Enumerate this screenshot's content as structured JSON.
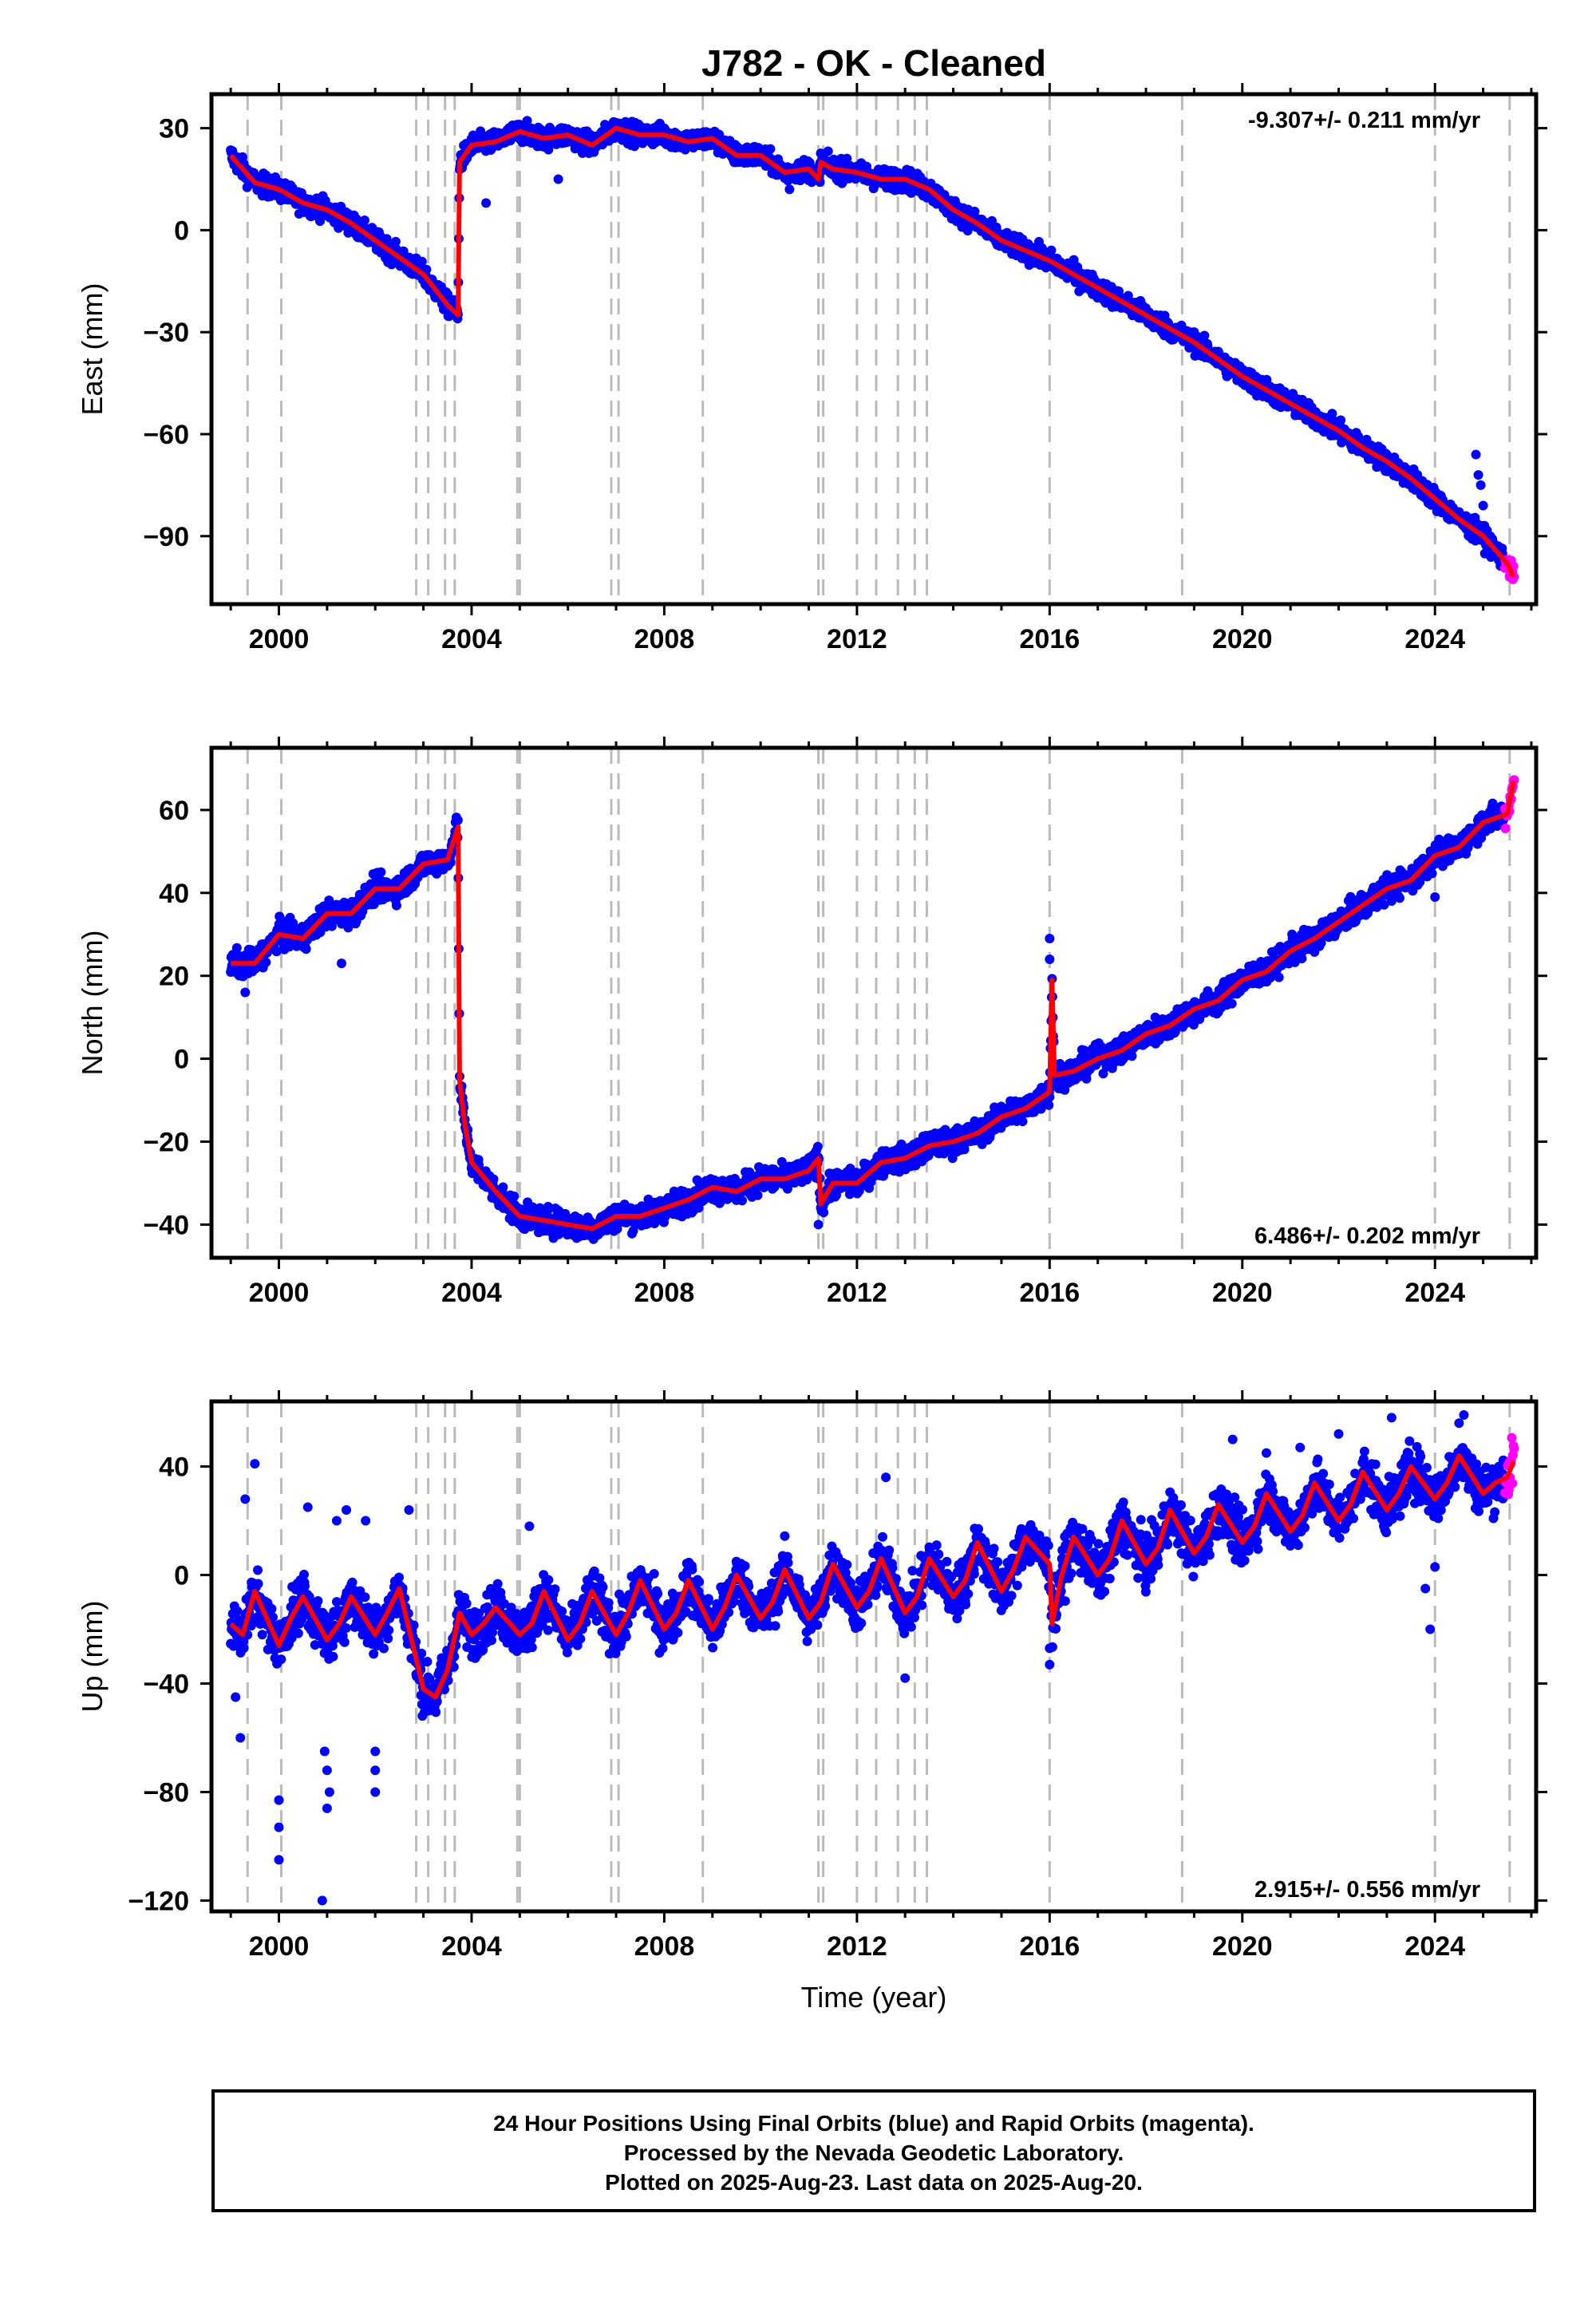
{
  "title": "J782  - OK - Cleaned",
  "x_label": "Time (year)",
  "caption": [
    "24 Hour Positions Using Final Orbits (blue) and Rapid Orbits (magenta).",
    "Processed by the Nevada Geodetic Laboratory.",
    "Plotted on 2025-Aug-23. Last data on 2025-Aug-20."
  ],
  "colors": {
    "final_orbits": "#0000ff",
    "rapid_orbits": "#ff00ff",
    "model": "#ff0000",
    "event_lines": "#bbbbbb"
  },
  "chart_data": [
    {
      "type": "scatter",
      "ylabel": "East (mm)",
      "rate_label": "-9.307+/- 0.211 mm/yr",
      "rate_position": "top-right",
      "xlim": [
        1998.6,
        2026.1
      ],
      "ylim": [
        -110,
        40
      ],
      "xticks": [
        2000,
        2004,
        2008,
        2012,
        2016,
        2020,
        2024
      ],
      "yticks": [
        30,
        0,
        -30,
        -60,
        -90
      ],
      "x": [
        1999.0,
        1999.5,
        2000.0,
        2000.5,
        2001.0,
        2001.5,
        2002.0,
        2002.5,
        2003.0,
        2003.5,
        2003.72,
        2003.75,
        2004.0,
        2004.5,
        2005.0,
        2005.5,
        2006.0,
        2006.5,
        2007.0,
        2007.5,
        2008.0,
        2008.5,
        2009.0,
        2009.5,
        2010.0,
        2010.5,
        2011.0,
        2011.2,
        2011.25,
        2011.5,
        2012.0,
        2012.5,
        2013.0,
        2013.5,
        2014.0,
        2014.5,
        2015.0,
        2015.5,
        2016.0,
        2016.5,
        2017.0,
        2017.5,
        2018.0,
        2018.5,
        2019.0,
        2019.5,
        2020.0,
        2020.5,
        2021.0,
        2021.5,
        2022.0,
        2022.5,
        2023.0,
        2023.5,
        2024.0,
        2024.5,
        2025.0,
        2025.5,
        2025.63
      ],
      "model": [
        22,
        14,
        12,
        8,
        6,
        2,
        -3,
        -8,
        -13,
        -22,
        -25,
        20,
        25,
        26,
        29,
        27,
        28,
        25,
        30,
        28,
        28,
        26,
        27,
        22,
        22,
        17,
        18,
        15,
        20,
        18,
        17,
        15,
        15,
        12,
        6,
        2,
        -3,
        -6,
        -9,
        -13,
        -17,
        -21,
        -25,
        -29,
        -33,
        -38,
        -43,
        -47,
        -51,
        -55,
        -59,
        -64,
        -68,
        -73,
        -79,
        -85,
        -90,
        -98,
        -102
      ],
      "series": [
        {
          "name": "Final Orbits",
          "color": "#0000ff",
          "spread": 3
        },
        {
          "name": "Rapid Orbits",
          "color": "#ff00ff",
          "x_from": 2025.45
        }
      ],
      "outliers": [
        [
          2024.85,
          -66
        ],
        [
          2024.9,
          -72
        ],
        [
          2024.95,
          -75
        ],
        [
          2025.0,
          -81
        ],
        [
          2010.6,
          12
        ],
        [
          2004.3,
          8
        ],
        [
          2005.8,
          15
        ]
      ]
    },
    {
      "type": "scatter",
      "ylabel": "North (mm)",
      "rate_label": "6.486+/- 0.202 mm/yr",
      "rate_position": "bottom-right",
      "xlim": [
        1998.6,
        2026.1
      ],
      "ylim": [
        -48,
        75
      ],
      "xticks": [
        2000,
        2004,
        2008,
        2012,
        2016,
        2020,
        2024
      ],
      "yticks": [
        60,
        40,
        20,
        0,
        -20,
        -40
      ],
      "x": [
        1999.0,
        1999.5,
        2000.0,
        2000.5,
        2001.0,
        2001.5,
        2002.0,
        2002.5,
        2003.0,
        2003.5,
        2003.72,
        2003.75,
        2003.85,
        2004.0,
        2004.5,
        2005.0,
        2005.5,
        2006.0,
        2006.5,
        2007.0,
        2007.5,
        2008.0,
        2008.5,
        2009.0,
        2009.5,
        2010.0,
        2010.5,
        2011.0,
        2011.2,
        2011.25,
        2011.5,
        2012.0,
        2012.5,
        2013.0,
        2013.5,
        2014.0,
        2014.5,
        2015.0,
        2015.5,
        2016.0,
        2016.05,
        2016.1,
        2016.5,
        2017.0,
        2017.5,
        2018.0,
        2018.5,
        2019.0,
        2019.5,
        2020.0,
        2020.5,
        2021.0,
        2021.5,
        2022.0,
        2022.5,
        2023.0,
        2023.5,
        2024.0,
        2024.5,
        2025.0,
        2025.5,
        2025.63
      ],
      "model": [
        23,
        23,
        30,
        29,
        35,
        35,
        41,
        41,
        47,
        48,
        56,
        -5,
        -15,
        -25,
        -32,
        -38,
        -39,
        -40,
        -41,
        -38,
        -38,
        -36,
        -34,
        -31,
        -32,
        -29,
        -29,
        -27,
        -24,
        -35,
        -30,
        -30,
        -25,
        -24,
        -21,
        -20,
        -18,
        -14,
        -12,
        -8,
        19,
        -4,
        -3,
        0,
        2,
        6,
        8,
        12,
        14,
        19,
        21,
        26,
        29,
        33,
        37,
        41,
        43,
        49,
        51,
        57,
        59,
        67
      ],
      "series": [
        {
          "name": "Final Orbits",
          "color": "#0000ff",
          "spread": 3
        },
        {
          "name": "Rapid Orbits",
          "color": "#ff00ff",
          "x_from": 2025.45
        }
      ],
      "outliers": [
        [
          2016.0,
          29
        ],
        [
          2016.0,
          24
        ],
        [
          2001.3,
          23
        ],
        [
          2011.2,
          -40
        ],
        [
          2024.0,
          39
        ],
        [
          1999.3,
          16
        ]
      ]
    },
    {
      "type": "scatter",
      "ylabel": "Up (mm)",
      "rate_label": "2.915+/- 0.556 mm/yr",
      "rate_position": "bottom-right",
      "xlim": [
        1998.6,
        2026.1
      ],
      "ylim": [
        -124,
        64
      ],
      "xticks": [
        2000,
        2004,
        2008,
        2012,
        2016,
        2020,
        2024
      ],
      "yticks": [
        40,
        0,
        -40,
        -80,
        -120
      ],
      "x": [
        1999.0,
        1999.25,
        1999.5,
        2000.0,
        2000.25,
        2000.5,
        2001.0,
        2001.25,
        2001.5,
        2002.0,
        2002.25,
        2002.5,
        2003.0,
        2003.25,
        2003.5,
        2003.75,
        2004.0,
        2004.25,
        2004.5,
        2005.0,
        2005.25,
        2005.5,
        2006.0,
        2006.25,
        2006.5,
        2007.0,
        2007.25,
        2007.5,
        2008.0,
        2008.25,
        2008.5,
        2009.0,
        2009.25,
        2009.5,
        2010.0,
        2010.25,
        2010.5,
        2011.0,
        2011.25,
        2011.5,
        2012.0,
        2012.25,
        2012.5,
        2013.0,
        2013.25,
        2013.5,
        2014.0,
        2014.25,
        2014.5,
        2015.0,
        2015.25,
        2015.5,
        2016.0,
        2016.05,
        2016.25,
        2016.5,
        2017.0,
        2017.25,
        2017.5,
        2018.0,
        2018.25,
        2018.5,
        2019.0,
        2019.25,
        2019.5,
        2020.0,
        2020.25,
        2020.5,
        2021.0,
        2021.25,
        2021.5,
        2022.0,
        2022.25,
        2022.5,
        2023.0,
        2023.25,
        2023.5,
        2024.0,
        2024.25,
        2024.5,
        2025.0,
        2025.25,
        2025.5,
        2025.63
      ],
      "model": [
        -18,
        -22,
        -6,
        -26,
        -16,
        -8,
        -24,
        -18,
        -8,
        -22,
        -14,
        -5,
        -42,
        -45,
        -35,
        -14,
        -22,
        -18,
        -12,
        -22,
        -18,
        -6,
        -24,
        -18,
        -6,
        -22,
        -14,
        -2,
        -20,
        -14,
        -2,
        -20,
        -12,
        0,
        -16,
        -10,
        2,
        -16,
        -10,
        4,
        -12,
        -6,
        6,
        -14,
        -8,
        6,
        -8,
        -2,
        12,
        -6,
        2,
        14,
        4,
        -18,
        0,
        14,
        0,
        6,
        20,
        4,
        10,
        24,
        8,
        14,
        26,
        12,
        18,
        30,
        16,
        22,
        34,
        20,
        26,
        38,
        24,
        30,
        40,
        28,
        34,
        44,
        30,
        34,
        36,
        42
      ],
      "series": [
        {
          "name": "Final Orbits",
          "color": "#0000ff",
          "spread": 9
        },
        {
          "name": "Rapid Orbits",
          "color": "#ff00ff",
          "x_from": 2025.45
        }
      ],
      "outliers": [
        [
          1999.2,
          -60
        ],
        [
          1999.1,
          -45
        ],
        [
          1999.5,
          41
        ],
        [
          1999.3,
          28
        ],
        [
          2000.0,
          -83
        ],
        [
          2000.0,
          -93
        ],
        [
          2000.0,
          -105
        ],
        [
          2000.6,
          25
        ],
        [
          2000.9,
          -120
        ],
        [
          2000.95,
          -65
        ],
        [
          2001.0,
          -72
        ],
        [
          2001.05,
          -80
        ],
        [
          2001.0,
          -86
        ],
        [
          2001.4,
          24
        ],
        [
          2001.2,
          20
        ],
        [
          2001.8,
          20
        ],
        [
          2002.0,
          -80
        ],
        [
          2002.0,
          -72
        ],
        [
          2002.0,
          -65
        ],
        [
          2002.7,
          24
        ],
        [
          2005.2,
          18
        ],
        [
          2012.6,
          36
        ],
        [
          2013.0,
          -38
        ],
        [
          2016.0,
          -33
        ],
        [
          2016.0,
          -27
        ],
        [
          2019.8,
          50
        ],
        [
          2020.5,
          45
        ],
        [
          2021.2,
          47
        ],
        [
          2022.0,
          52
        ],
        [
          2023.1,
          58
        ],
        [
          2024.6,
          59
        ],
        [
          2024.5,
          56
        ],
        [
          2023.9,
          -20
        ],
        [
          2023.8,
          -5
        ],
        [
          2024.0,
          3
        ]
      ]
    }
  ],
  "event_years": [
    1999.35,
    2000.05,
    2002.85,
    2003.1,
    2003.45,
    2003.65,
    2004.95,
    2005.0,
    2006.9,
    2007.05,
    2008.8,
    2011.2,
    2011.3,
    2012.0,
    2012.4,
    2012.85,
    2013.2,
    2013.45,
    2016.0,
    2018.75,
    2024.0,
    2025.55
  ]
}
